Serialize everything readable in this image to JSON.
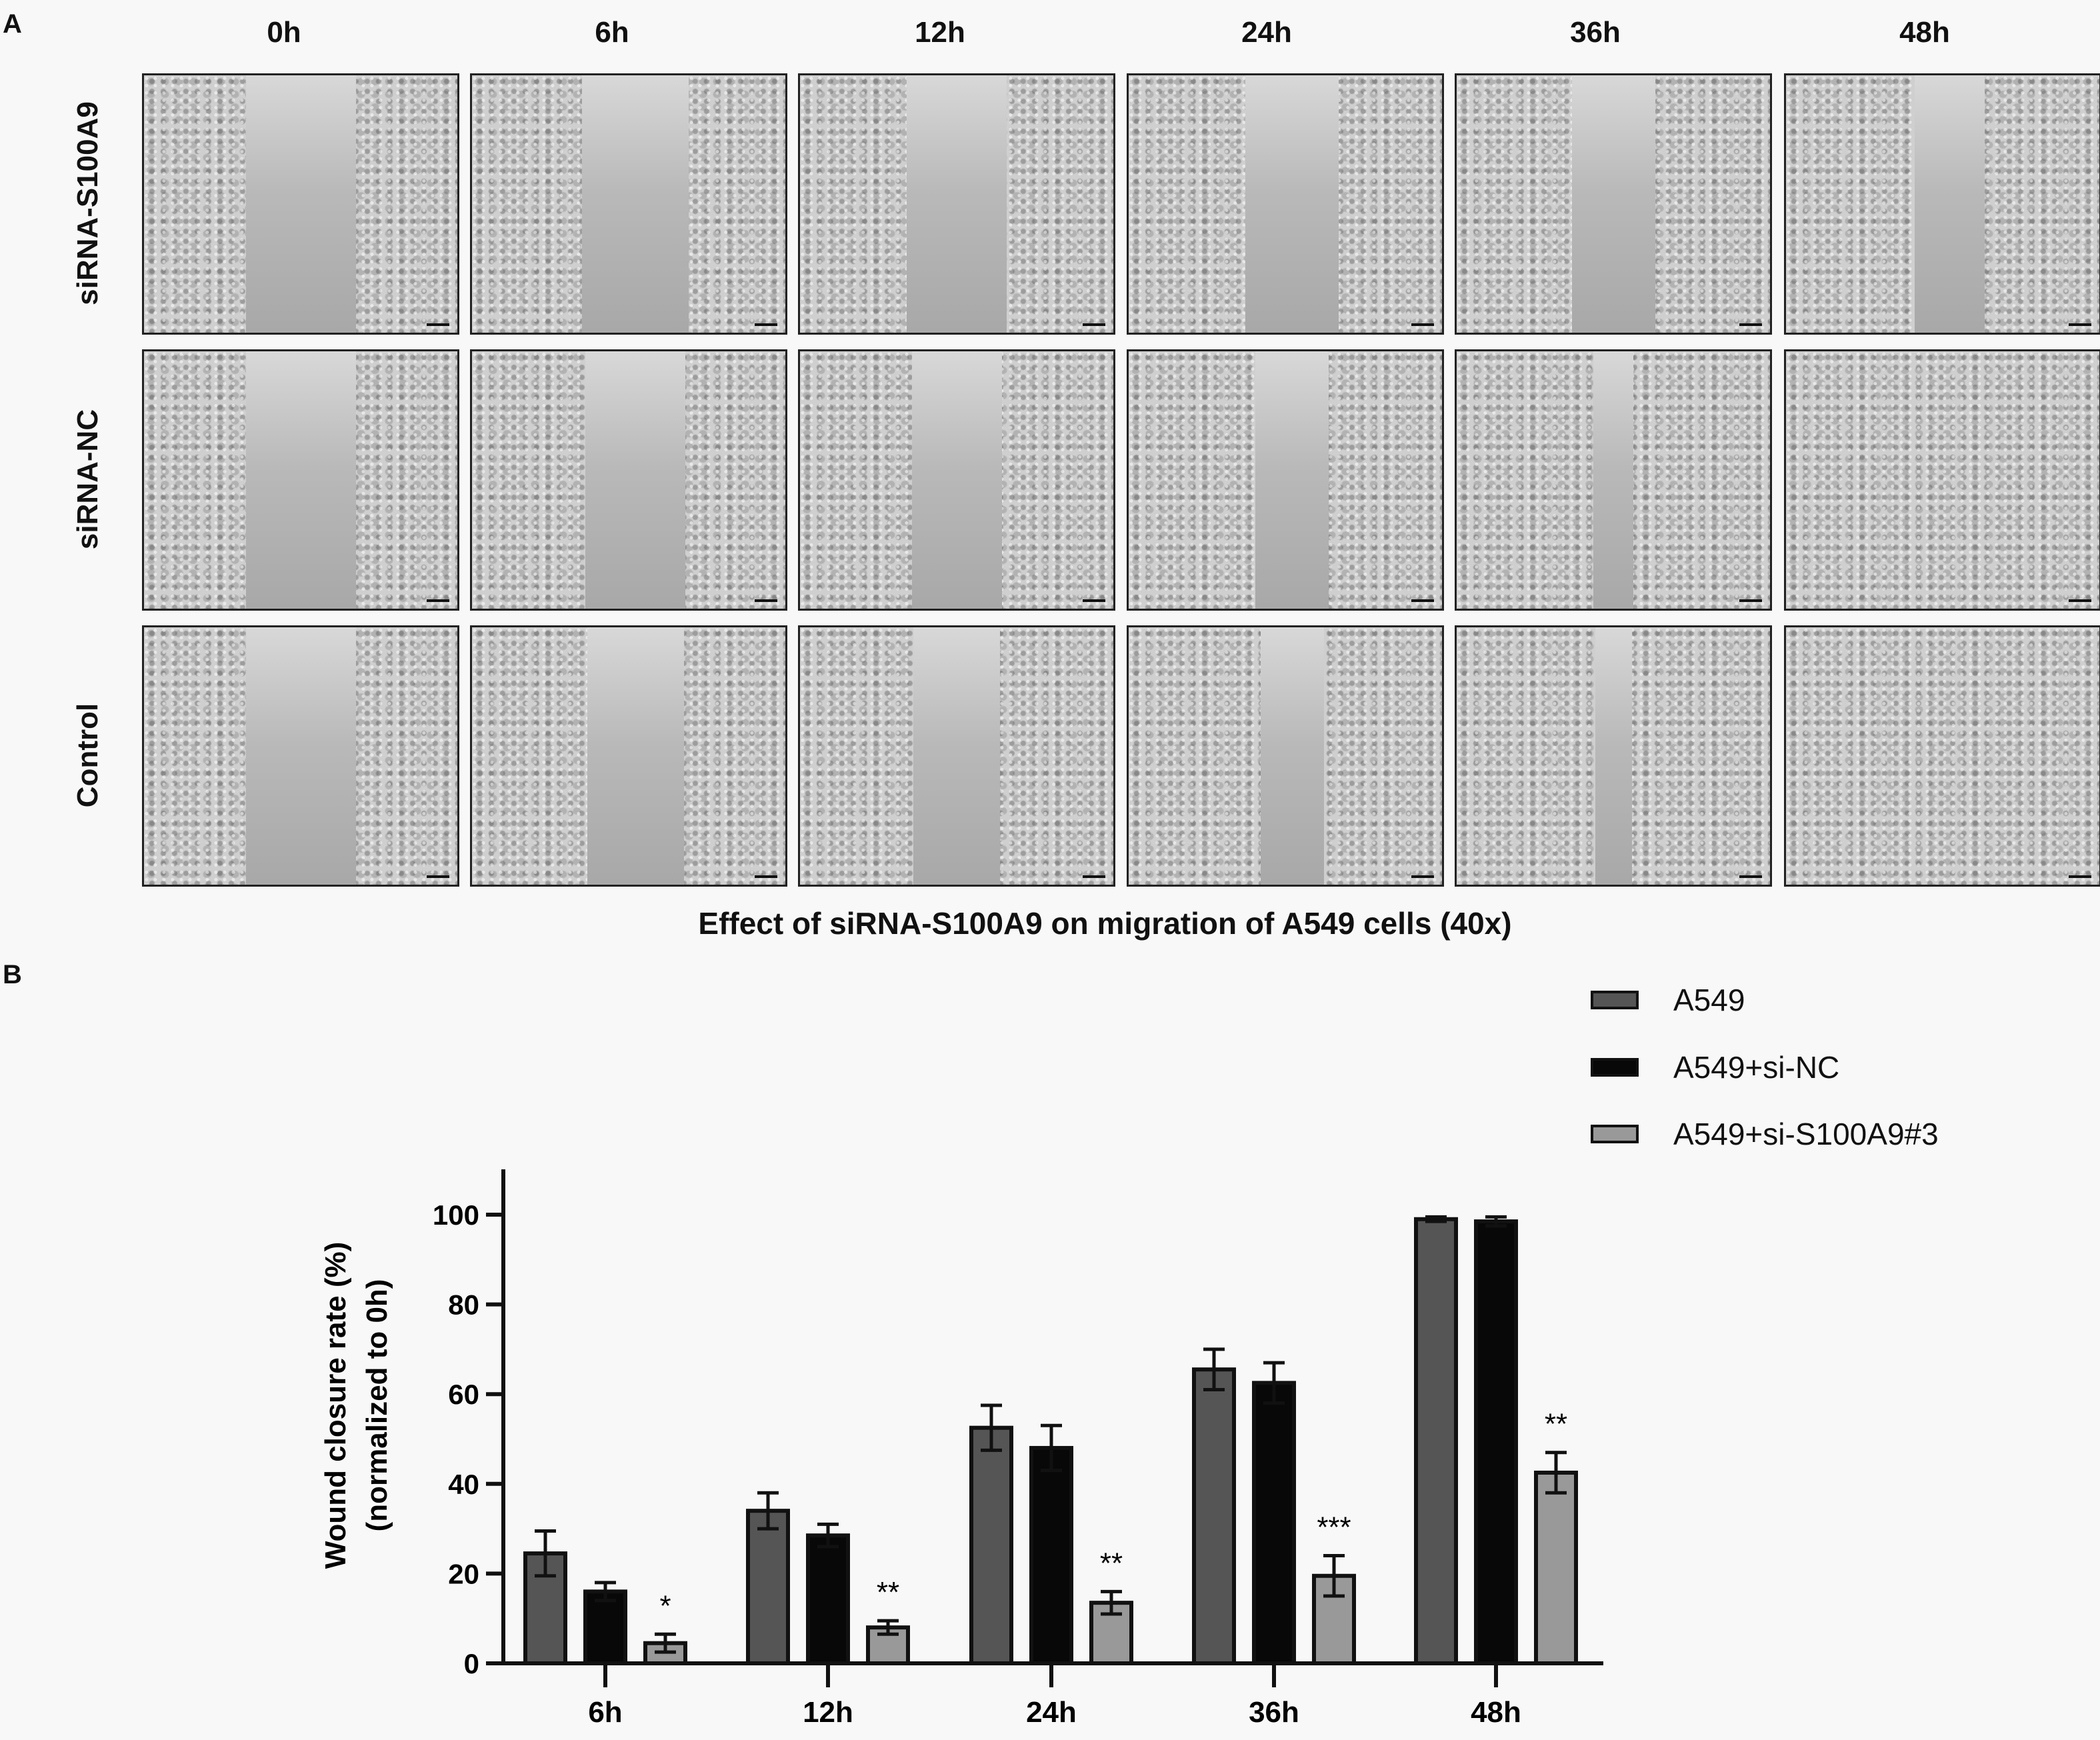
{
  "panel_a": {
    "letter": "A",
    "columns": [
      "0h",
      "6h",
      "12h",
      "24h",
      "36h",
      "48h"
    ],
    "rows": [
      "siRNA-S100A9",
      "siRNA-NC",
      "Control"
    ],
    "caption": "Effect of siRNA-S100A9 on migration of A549 cells (40x)"
  },
  "panel_b": {
    "letter": "B"
  },
  "chart_data": {
    "type": "bar",
    "title": "",
    "xlabel": "",
    "ylabel": "Wound closure rate (%)",
    "ylabel_line2": "(normalized to 0h)",
    "categories": [
      "6h",
      "12h",
      "24h",
      "36h",
      "48h"
    ],
    "ylim": [
      0,
      110
    ],
    "yticks": [
      0,
      20,
      40,
      60,
      80,
      100
    ],
    "legend_position": "top-right",
    "series": [
      {
        "name": "A549",
        "color": "#555555",
        "values": [
          24.5,
          34,
          52.5,
          65.5,
          99
        ],
        "errors": [
          5,
          4,
          5,
          4.5,
          0.5
        ]
      },
      {
        "name": "A549+si-NC",
        "color": "#080808",
        "values": [
          16,
          28.5,
          48,
          62.5,
          98.5
        ],
        "errors": [
          2,
          2.5,
          5,
          4.5,
          1
        ]
      },
      {
        "name": "A549+si-S100A9#3",
        "color": "#999999",
        "values": [
          4.5,
          8,
          13.5,
          19.5,
          42.5
        ],
        "errors": [
          2,
          1.5,
          2.5,
          4.5,
          4.5
        ]
      }
    ],
    "annotations": [
      "*",
      "**",
      "**",
      "***",
      "**"
    ]
  }
}
